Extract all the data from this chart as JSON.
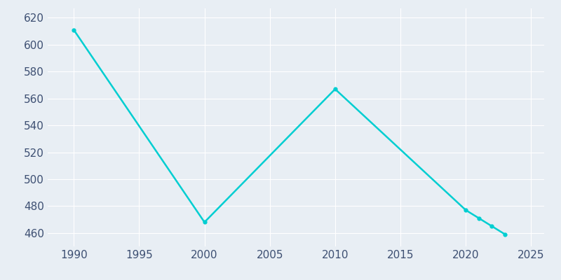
{
  "years": [
    1990,
    2000,
    2010,
    2020,
    2021,
    2022,
    2023
  ],
  "population": [
    611,
    468,
    567,
    477,
    471,
    465,
    459
  ],
  "line_color": "#00CED1",
  "marker": "o",
  "marker_size": 3.5,
  "linewidth": 1.8,
  "background_color": "#E8EEF4",
  "grid_color": "#FFFFFF",
  "xlim": [
    1988,
    2026
  ],
  "ylim": [
    450,
    627
  ],
  "yticks": [
    460,
    480,
    500,
    520,
    540,
    560,
    580,
    600,
    620
  ],
  "xticks": [
    1990,
    1995,
    2000,
    2005,
    2010,
    2015,
    2020,
    2025
  ],
  "tick_color": "#3D4F72",
  "tick_labelsize": 11,
  "grid_linewidth": 0.8
}
